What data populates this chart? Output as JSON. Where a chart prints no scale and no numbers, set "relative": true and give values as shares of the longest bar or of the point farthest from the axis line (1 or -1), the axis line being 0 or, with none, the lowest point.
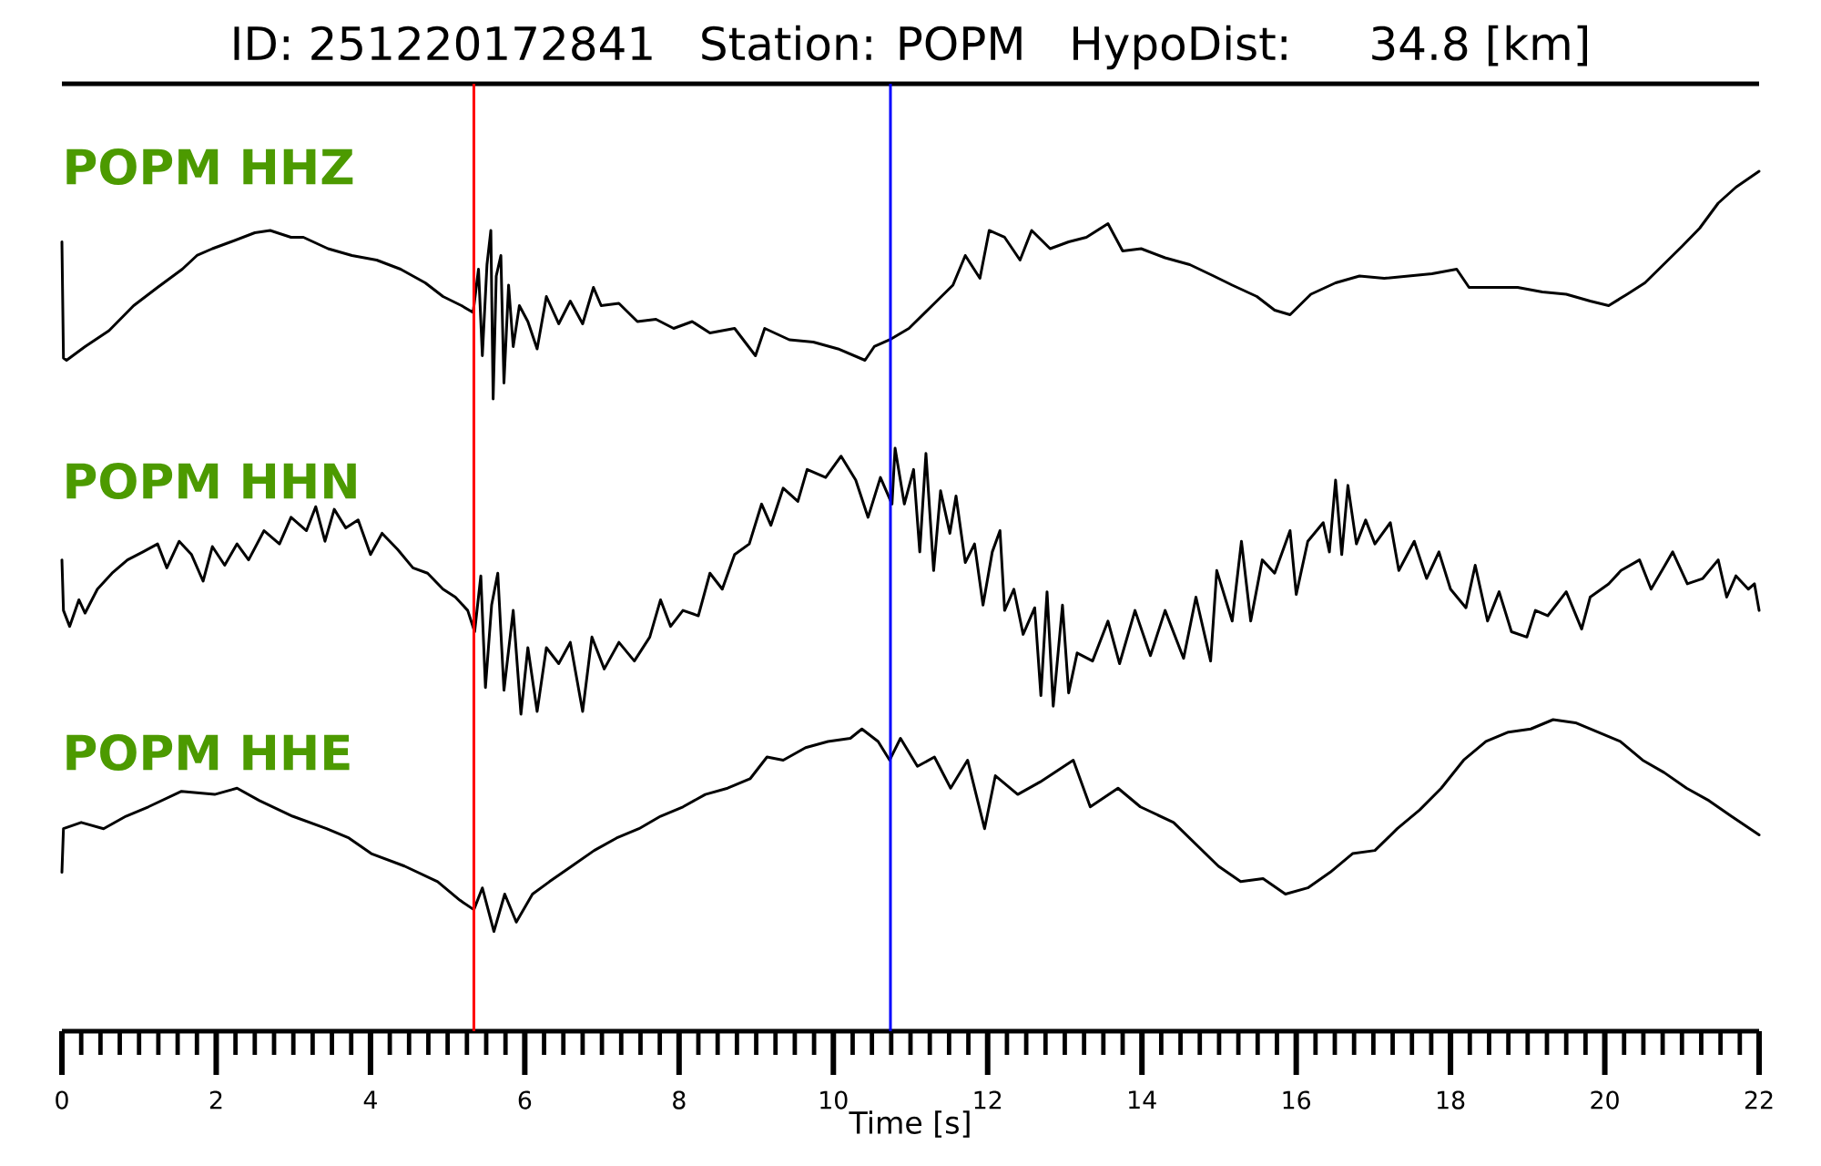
{
  "chart_data": [
    {
      "type": "line",
      "relative": true,
      "title": "ID: 251220172841   Station: POPM   HypoDist:    34.8 [km]",
      "xlim": [
        0,
        22
      ],
      "ref_lines": [
        {
          "axis": "x",
          "value": 5.34,
          "color": "#ff0000"
        },
        {
          "axis": "x",
          "value": 10.74,
          "color": "#0000ff"
        }
      ],
      "series": [
        {
          "name": "POPM HHZ",
          "color": "#000000",
          "x": [
            0,
            0.02,
            0.06,
            0.3,
            0.61,
            0.93,
            1.24,
            1.56,
            1.75,
            1.95,
            2.19,
            2.5,
            2.7,
            2.97,
            3.13,
            3.45,
            3.76,
            4.08,
            4.39,
            4.71,
            4.94,
            5.18,
            5.33,
            5.4,
            5.45,
            5.51,
            5.56,
            5.59,
            5.63,
            5.69,
            5.73,
            5.79,
            5.85,
            5.93,
            6.04,
            6.16,
            6.28,
            6.44,
            6.59,
            6.75,
            6.89,
            6.99,
            7.22,
            7.46,
            7.7,
            7.93,
            8.17,
            8.4,
            8.72,
            8.99,
            9.11,
            9.43,
            9.74,
            10.06,
            10.41,
            10.53,
            10.73,
            10.98,
            11.31,
            11.55,
            11.71,
            11.9,
            12.02,
            12.22,
            12.42,
            12.57,
            12.81,
            13.05,
            13.28,
            13.56,
            13.75,
            13.99,
            14.3,
            14.62,
            14.93,
            15.17,
            15.49,
            15.72,
            15.92,
            16.19,
            16.51,
            16.82,
            17.14,
            17.45,
            17.76,
            18.08,
            18.24,
            18.55,
            18.87,
            19.19,
            19.5,
            19.81,
            20.05,
            20.29,
            20.52,
            20.76,
            21.0,
            21.23,
            21.47,
            21.7,
            22.0
          ],
          "values": [
            0.69,
            0.18,
            0.17,
            0.23,
            0.3,
            0.41,
            0.49,
            0.57,
            0.63,
            0.66,
            0.69,
            0.73,
            0.74,
            0.71,
            0.71,
            0.66,
            0.63,
            0.61,
            0.57,
            0.51,
            0.45,
            0.41,
            0.38,
            0.57,
            0.19,
            0.59,
            0.74,
            0.0,
            0.54,
            0.63,
            0.07,
            0.5,
            0.23,
            0.41,
            0.34,
            0.22,
            0.45,
            0.33,
            0.43,
            0.33,
            0.49,
            0.41,
            0.42,
            0.34,
            0.35,
            0.31,
            0.34,
            0.29,
            0.31,
            0.19,
            0.31,
            0.26,
            0.25,
            0.22,
            0.17,
            0.23,
            0.26,
            0.31,
            0.42,
            0.5,
            0.63,
            0.53,
            0.74,
            0.71,
            0.61,
            0.74,
            0.66,
            0.69,
            0.71,
            0.77,
            0.65,
            0.66,
            0.62,
            0.59,
            0.54,
            0.5,
            0.45,
            0.39,
            0.37,
            0.46,
            0.51,
            0.54,
            0.53,
            0.54,
            0.55,
            0.57,
            0.49,
            0.49,
            0.49,
            0.47,
            0.46,
            0.43,
            0.41,
            0.46,
            0.51,
            0.59,
            0.67,
            0.75,
            0.86,
            0.93,
            1.0
          ]
        }
      ]
    },
    {
      "type": "line",
      "relative": true,
      "xlim": [
        0,
        22
      ],
      "ref_lines": [
        {
          "axis": "x",
          "value": 5.34,
          "color": "#ff0000"
        },
        {
          "axis": "x",
          "value": 10.74,
          "color": "#0000ff"
        }
      ],
      "series": [
        {
          "name": "POPM HHN",
          "color": "#000000",
          "x": [
            0,
            0.02,
            0.1,
            0.22,
            0.3,
            0.46,
            0.65,
            0.85,
            1.05,
            1.24,
            1.36,
            1.52,
            1.68,
            1.83,
            1.95,
            2.11,
            2.27,
            2.42,
            2.62,
            2.82,
            2.97,
            3.17,
            3.29,
            3.41,
            3.53,
            3.68,
            3.84,
            4.0,
            4.15,
            4.35,
            4.55,
            4.74,
            4.94,
            5.1,
            5.26,
            5.35,
            5.43,
            5.49,
            5.57,
            5.65,
            5.73,
            5.85,
            5.95,
            6.04,
            6.16,
            6.28,
            6.44,
            6.59,
            6.75,
            6.87,
            7.03,
            7.22,
            7.42,
            7.62,
            7.76,
            7.89,
            8.05,
            8.25,
            8.4,
            8.56,
            8.72,
            8.91,
            9.07,
            9.19,
            9.35,
            9.54,
            9.66,
            9.9,
            10.1,
            10.29,
            10.45,
            10.61,
            10.76,
            10.8,
            10.92,
            11.04,
            11.12,
            11.2,
            11.3,
            11.39,
            11.51,
            11.59,
            11.71,
            11.83,
            11.94,
            12.06,
            12.16,
            12.22,
            12.34,
            12.46,
            12.61,
            12.69,
            12.77,
            12.85,
            12.97,
            13.05,
            13.16,
            13.36,
            13.56,
            13.71,
            13.91,
            14.11,
            14.3,
            14.54,
            14.7,
            14.89,
            14.97,
            15.17,
            15.29,
            15.41,
            15.56,
            15.72,
            15.92,
            16.0,
            16.15,
            16.35,
            16.43,
            16.51,
            16.59,
            16.67,
            16.78,
            16.9,
            17.02,
            17.22,
            17.33,
            17.53,
            17.69,
            17.85,
            18.0,
            18.2,
            18.32,
            18.48,
            18.63,
            18.79,
            18.99,
            19.1,
            19.26,
            19.5,
            19.7,
            19.81,
            20.05,
            20.21,
            20.45,
            20.6,
            20.76,
            20.88,
            21.07,
            21.27,
            21.47,
            21.58,
            21.7,
            21.86,
            21.94,
            22.0
          ],
          "values": [
            0.58,
            0.39,
            0.33,
            0.43,
            0.38,
            0.47,
            0.53,
            0.58,
            0.61,
            0.64,
            0.55,
            0.65,
            0.6,
            0.5,
            0.63,
            0.56,
            0.64,
            0.58,
            0.69,
            0.64,
            0.74,
            0.69,
            0.78,
            0.65,
            0.77,
            0.7,
            0.73,
            0.6,
            0.68,
            0.62,
            0.55,
            0.53,
            0.47,
            0.44,
            0.39,
            0.31,
            0.52,
            0.1,
            0.41,
            0.53,
            0.09,
            0.39,
            0.0,
            0.25,
            0.01,
            0.25,
            0.19,
            0.27,
            0.01,
            0.29,
            0.17,
            0.27,
            0.2,
            0.29,
            0.43,
            0.33,
            0.39,
            0.37,
            0.53,
            0.47,
            0.6,
            0.64,
            0.79,
            0.71,
            0.85,
            0.8,
            0.92,
            0.89,
            0.97,
            0.88,
            0.74,
            0.89,
            0.79,
            1.0,
            0.79,
            0.92,
            0.61,
            0.98,
            0.54,
            0.84,
            0.68,
            0.82,
            0.57,
            0.64,
            0.41,
            0.61,
            0.69,
            0.39,
            0.47,
            0.3,
            0.4,
            0.07,
            0.46,
            0.03,
            0.41,
            0.08,
            0.23,
            0.2,
            0.35,
            0.19,
            0.39,
            0.22,
            0.39,
            0.21,
            0.44,
            0.2,
            0.54,
            0.35,
            0.65,
            0.35,
            0.58,
            0.53,
            0.69,
            0.45,
            0.65,
            0.72,
            0.61,
            0.88,
            0.6,
            0.86,
            0.64,
            0.73,
            0.64,
            0.72,
            0.54,
            0.65,
            0.51,
            0.61,
            0.47,
            0.4,
            0.56,
            0.35,
            0.46,
            0.31,
            0.29,
            0.39,
            0.37,
            0.46,
            0.32,
            0.44,
            0.49,
            0.54,
            0.58,
            0.47,
            0.55,
            0.61,
            0.49,
            0.51,
            0.58,
            0.44,
            0.52,
            0.47,
            0.49,
            0.39
          ]
        }
      ]
    },
    {
      "type": "line",
      "relative": true,
      "xlabel": "Time [s]",
      "xlim": [
        0,
        22
      ],
      "xticks": [
        0,
        {
          "value": 0.25,
          "label": null
        },
        {
          "value": 0.5,
          "label": null
        },
        {
          "value": 0.75,
          "label": null
        },
        {
          "value": 1,
          "label": null
        },
        {
          "value": 1.25,
          "label": null
        },
        {
          "value": 1.5,
          "label": null
        },
        {
          "value": 1.75,
          "label": null
        },
        2,
        {
          "value": 2.25,
          "label": null
        },
        {
          "value": 2.5,
          "label": null
        },
        {
          "value": 2.75,
          "label": null
        },
        {
          "value": 3,
          "label": null
        },
        {
          "value": 3.25,
          "label": null
        },
        {
          "value": 3.5,
          "label": null
        },
        {
          "value": 3.75,
          "label": null
        },
        4,
        {
          "value": 4.25,
          "label": null
        },
        {
          "value": 4.5,
          "label": null
        },
        {
          "value": 4.75,
          "label": null
        },
        {
          "value": 5,
          "label": null
        },
        {
          "value": 5.25,
          "label": null
        },
        {
          "value": 5.5,
          "label": null
        },
        {
          "value": 5.75,
          "label": null
        },
        6,
        {
          "value": 6.25,
          "label": null
        },
        {
          "value": 6.5,
          "label": null
        },
        {
          "value": 6.75,
          "label": null
        },
        {
          "value": 7,
          "label": null
        },
        {
          "value": 7.25,
          "label": null
        },
        {
          "value": 7.5,
          "label": null
        },
        {
          "value": 7.75,
          "label": null
        },
        8,
        {
          "value": 8.25,
          "label": null
        },
        {
          "value": 8.5,
          "label": null
        },
        {
          "value": 8.75,
          "label": null
        },
        {
          "value": 9,
          "label": null
        },
        {
          "value": 9.25,
          "label": null
        },
        {
          "value": 9.5,
          "label": null
        },
        {
          "value": 9.75,
          "label": null
        },
        10,
        {
          "value": 10.25,
          "label": null
        },
        {
          "value": 10.5,
          "label": null
        },
        {
          "value": 10.75,
          "label": null
        },
        {
          "value": 11,
          "label": null
        },
        {
          "value": 11.25,
          "label": null
        },
        {
          "value": 11.5,
          "label": null
        },
        {
          "value": 11.75,
          "label": null
        },
        12,
        {
          "value": 12.25,
          "label": null
        },
        {
          "value": 12.5,
          "label": null
        },
        {
          "value": 12.75,
          "label": null
        },
        {
          "value": 13,
          "label": null
        },
        {
          "value": 13.25,
          "label": null
        },
        {
          "value": 13.5,
          "label": null
        },
        {
          "value": 13.75,
          "label": null
        },
        14,
        {
          "value": 14.25,
          "label": null
        },
        {
          "value": 14.5,
          "label": null
        },
        {
          "value": 14.75,
          "label": null
        },
        {
          "value": 15,
          "label": null
        },
        {
          "value": 15.25,
          "label": null
        },
        {
          "value": 15.5,
          "label": null
        },
        {
          "value": 15.75,
          "label": null
        },
        16,
        {
          "value": 16.25,
          "label": null
        },
        {
          "value": 16.5,
          "label": null
        },
        {
          "value": 16.75,
          "label": null
        },
        {
          "value": 17,
          "label": null
        },
        {
          "value": 17.25,
          "label": null
        },
        {
          "value": 17.5,
          "label": null
        },
        {
          "value": 17.75,
          "label": null
        },
        18,
        {
          "value": 18.25,
          "label": null
        },
        {
          "value": 18.5,
          "label": null
        },
        {
          "value": 18.75,
          "label": null
        },
        {
          "value": 19,
          "label": null
        },
        {
          "value": 19.25,
          "label": null
        },
        {
          "value": 19.5,
          "label": null
        },
        {
          "value": 19.75,
          "label": null
        },
        20,
        {
          "value": 20.25,
          "label": null
        },
        {
          "value": 20.5,
          "label": null
        },
        {
          "value": 20.75,
          "label": null
        },
        {
          "value": 21,
          "label": null
        },
        {
          "value": 21.25,
          "label": null
        },
        {
          "value": 21.5,
          "label": null
        },
        {
          "value": 21.75,
          "label": null
        },
        22
      ],
      "ref_lines": [
        {
          "axis": "x",
          "value": 5.34,
          "color": "#ff0000"
        },
        {
          "axis": "x",
          "value": 10.74,
          "color": "#0000ff"
        }
      ],
      "series": [
        {
          "name": "POPM HHE",
          "color": "#000000",
          "x": [
            0,
            0.02,
            0.25,
            0.54,
            0.83,
            1.12,
            1.55,
            1.98,
            2.27,
            2.56,
            2.99,
            3.43,
            3.72,
            4.01,
            4.44,
            4.87,
            5.16,
            5.34,
            5.45,
            5.6,
            5.74,
            5.89,
            6.1,
            6.32,
            6.61,
            6.9,
            7.19,
            7.48,
            7.76,
            8.05,
            8.34,
            8.63,
            8.92,
            9.14,
            9.35,
            9.64,
            9.93,
            10.22,
            10.37,
            10.58,
            10.73,
            10.87,
            11.09,
            11.31,
            11.52,
            11.74,
            11.96,
            12.1,
            12.39,
            12.68,
            13.11,
            13.33,
            13.69,
            13.98,
            14.41,
            14.7,
            14.99,
            15.28,
            15.57,
            15.86,
            16.15,
            16.44,
            16.73,
            17.02,
            17.31,
            17.6,
            17.88,
            18.17,
            18.46,
            18.75,
            19.04,
            19.33,
            19.62,
            19.91,
            20.2,
            20.49,
            20.77,
            21.06,
            21.35,
            21.64,
            22.0
          ],
          "values": [
            0.51,
            0.65,
            0.67,
            0.65,
            0.69,
            0.72,
            0.77,
            0.76,
            0.78,
            0.74,
            0.69,
            0.65,
            0.62,
            0.57,
            0.53,
            0.48,
            0.42,
            0.39,
            0.46,
            0.32,
            0.44,
            0.35,
            0.44,
            0.48,
            0.53,
            0.58,
            0.62,
            0.65,
            0.69,
            0.72,
            0.76,
            0.78,
            0.81,
            0.88,
            0.87,
            0.91,
            0.93,
            0.94,
            0.97,
            0.93,
            0.87,
            0.94,
            0.85,
            0.88,
            0.78,
            0.87,
            0.65,
            0.82,
            0.76,
            0.8,
            0.87,
            0.72,
            0.78,
            0.72,
            0.67,
            0.6,
            0.53,
            0.48,
            0.49,
            0.44,
            0.46,
            0.51,
            0.57,
            0.58,
            0.65,
            0.71,
            0.78,
            0.87,
            0.93,
            0.96,
            0.97,
            1.0,
            0.99,
            0.96,
            0.93,
            0.87,
            0.83,
            0.78,
            0.74,
            0.69,
            0.63
          ]
        }
      ]
    }
  ]
}
